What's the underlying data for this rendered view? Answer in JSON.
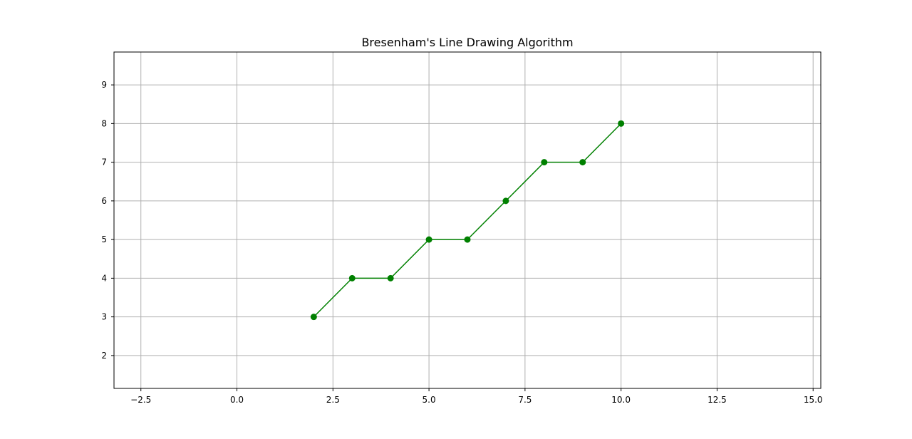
{
  "chart_data": {
    "type": "line",
    "title": "Bresenham's Line Drawing Algorithm",
    "xlabel": "",
    "ylabel": "",
    "xlim": [
      -3.2,
      15.2
    ],
    "ylim": [
      1.15,
      9.85
    ],
    "x_ticks": [
      -2.5,
      0.0,
      2.5,
      5.0,
      7.5,
      10.0,
      12.5,
      15.0
    ],
    "x_tick_labels": [
      "−2.5",
      "0.0",
      "2.5",
      "5.0",
      "7.5",
      "10.0",
      "12.5",
      "15.0"
    ],
    "y_ticks": [
      2,
      3,
      4,
      5,
      6,
      7,
      8,
      9
    ],
    "y_tick_labels": [
      "2",
      "3",
      "4",
      "5",
      "6",
      "7",
      "8",
      "9"
    ],
    "grid": true,
    "series": [
      {
        "color": "#008000",
        "marker": "circle",
        "x": [
          2,
          3,
          4,
          5,
          6,
          7,
          8,
          9,
          10
        ],
        "y": [
          3,
          4,
          4,
          5,
          5,
          6,
          7,
          7,
          8
        ]
      }
    ]
  }
}
